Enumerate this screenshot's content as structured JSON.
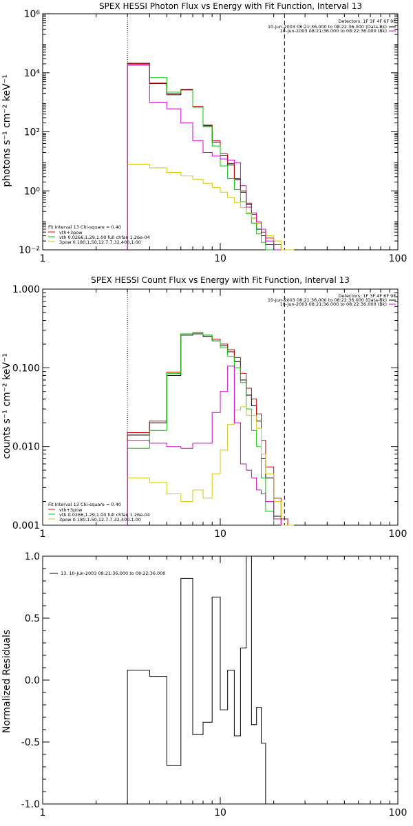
{
  "colors": {
    "data": "#000000",
    "total_fit": "#d40000",
    "thermal": "#00c800",
    "power_law": "#d4c800",
    "background": "#d000d0"
  },
  "chart_data": [
    {
      "type": "line",
      "step": true,
      "title": "SPEX HESSI Photon Flux vs Energy with Fit Function, Interval 13",
      "xlabel": "",
      "ylabel": "photons s⁻¹ cm⁻² keV⁻¹",
      "xscale": "log",
      "yscale": "log",
      "xlim": [
        1,
        100
      ],
      "ylim": [
        0.01,
        1000000
      ],
      "x_ticks": [
        1,
        10,
        100
      ],
      "x_tick_labels": [
        "1",
        "10",
        "100"
      ],
      "y_ticks": [
        0.01,
        1,
        100,
        10000,
        1000000
      ],
      "y_tick_labels": [
        "10⁻²",
        "10⁰",
        "10²",
        "10⁴",
        "10⁶"
      ],
      "energy_edges": [
        3,
        4,
        5,
        6,
        7,
        8,
        9,
        10,
        11,
        12,
        13,
        14,
        15,
        16,
        17,
        18,
        20,
        22,
        24,
        26
      ],
      "fit_range": [
        3,
        23
      ],
      "annot_top_right": [
        "Detectors: 1F 3F 4F 6F 9F",
        "10-Jun-2003 08:21:36.000 to 08:22:36.000 (Data-Bk)",
        "10-Jun-2003 08:21:36.000 to 08:22:36.000 (Bk)"
      ],
      "annot_bottom_left": [
        "Fit Interval 13    Chi-square = 0.40",
        "vth+3pow",
        "vth 0.0266,1.29,1.00  full chfan 1.26e-04",
        "3pow 0.180,1.50,12.7,7.32,400,1.00"
      ],
      "series": [
        {
          "name": "Data-Bk",
          "color": "#000000",
          "values": [
            21000,
            4300,
            1800,
            2600,
            700,
            160,
            45,
            16,
            7.5,
            2.4,
            0.9,
            0.34,
            0.12,
            0.05,
            0.03,
            0.015,
            0.01,
            0.008,
            null
          ]
        },
        {
          "name": "vth+3pow",
          "color": "#d40000",
          "values": [
            20000,
            4500,
            2000,
            2700,
            720,
            170,
            50,
            18,
            8.5,
            2.6,
            1,
            0.38,
            0.16,
            0.08,
            0.04,
            0.025,
            0.015,
            0.01,
            null
          ]
        },
        {
          "name": "vth",
          "color": "#00c800",
          "values": [
            19000,
            6900,
            2200,
            2800,
            680,
            150,
            33,
            7,
            2.6,
            1.1,
            0.43,
            0.17,
            0.08,
            0.035,
            0.018,
            0.01,
            null,
            null,
            null
          ]
        },
        {
          "name": "3pow",
          "color": "#d4c800",
          "values": [
            8,
            6,
            4.2,
            3.2,
            2.5,
            1.8,
            1.3,
            0.9,
            0.6,
            0.4,
            0.27,
            0.18,
            0.12,
            0.08,
            0.05,
            0.03,
            0.02,
            0.01,
            0.01
          ]
        },
        {
          "name": "Bk",
          "color": "#d000d0",
          "values": [
            18000,
            1000,
            600,
            200,
            50,
            20,
            15,
            12,
            11,
            9,
            1.5,
            0.28,
            0.18,
            0.09,
            0.05,
            0.02,
            0.01,
            null,
            null
          ]
        }
      ]
    },
    {
      "type": "line",
      "step": true,
      "title": "SPEX HESSI Count Flux vs Energy with Fit Function, Interval 13",
      "xlabel": "",
      "ylabel": "counts s⁻¹ cm⁻² keV⁻¹",
      "xscale": "log",
      "yscale": "log",
      "xlim": [
        1,
        100
      ],
      "ylim": [
        0.001,
        1
      ],
      "x_ticks": [
        1,
        10,
        100
      ],
      "x_tick_labels": [
        "1",
        "10",
        "100"
      ],
      "y_ticks": [
        0.001,
        0.01,
        0.1,
        1
      ],
      "y_tick_labels": [
        "0.001",
        "0.010",
        "0.100",
        "1.000"
      ],
      "energy_edges": [
        3,
        4,
        5,
        6,
        7,
        8,
        9,
        10,
        11,
        12,
        13,
        14,
        15,
        16,
        17,
        18,
        20,
        22,
        24,
        26
      ],
      "fit_range": [
        3,
        23
      ],
      "annot_top_right": [
        "Detectors: 1F 3F 4F 6F 9F",
        "10-Jun-2003 08:21:36.000 to 08:22:36.000 (Data-Bk)",
        "10-Jun-2003 08:21:36.000 to 08:22:36.000 (Bk)"
      ],
      "annot_bottom_left": [
        "Fit Interval 13    Chi-square = 0.40",
        "vth+3pow",
        "vth 0.0266,1.29,1.00  full chfan 1.26e-04",
        "3pow 0.180,1.50,12.7,7.32,400,1.00"
      ],
      "series": [
        {
          "name": "Data-Bk",
          "color": "#000000",
          "values": [
            0.014,
            0.02,
            0.08,
            0.26,
            0.27,
            0.25,
            0.22,
            0.19,
            0.16,
            0.12,
            0.07,
            0.045,
            0.033,
            0.021,
            0.007,
            0.004,
            0.0013,
            null,
            null
          ]
        },
        {
          "name": "vth+3pow",
          "color": "#d40000",
          "values": [
            0.015,
            0.021,
            0.088,
            0.27,
            0.28,
            0.26,
            0.23,
            0.2,
            0.17,
            0.135,
            0.085,
            0.055,
            0.04,
            0.026,
            0.012,
            0.0055,
            0.0022,
            0.0012,
            null
          ]
        },
        {
          "name": "vth",
          "color": "#00c800",
          "values": [
            0.0095,
            0.016,
            0.085,
            0.27,
            0.28,
            0.26,
            0.22,
            0.18,
            0.14,
            0.1,
            0.065,
            0.03,
            0.016,
            0.01,
            0.004,
            0.0015,
            null,
            null,
            null
          ]
        },
        {
          "name": "3pow",
          "color": "#d4c800",
          "values": [
            0.004,
            0.0035,
            0.0025,
            0.002,
            0.0028,
            0.0022,
            0.0045,
            0.009,
            0.019,
            0.029,
            0.032,
            0.025,
            0.025,
            0.017,
            0.008,
            0.0045,
            0.002,
            0.001,
            0.001
          ]
        },
        {
          "name": "Bk",
          "color": "#d000d0",
          "values": [
            0.012,
            0.011,
            0.01,
            0.0095,
            0.011,
            0.011,
            0.027,
            0.05,
            0.105,
            0.02,
            0.006,
            0.005,
            0.004,
            0.0028,
            0.0025,
            0.002,
            0.0012,
            null,
            null
          ]
        }
      ]
    },
    {
      "type": "line",
      "step": true,
      "title": "",
      "xlabel": "",
      "ylabel": "Normalized Residuals",
      "xscale": "log",
      "yscale": "linear",
      "xlim": [
        1,
        100
      ],
      "ylim": [
        -1,
        1
      ],
      "x_ticks": [
        1,
        10,
        100
      ],
      "x_tick_labels": [
        "1",
        "10",
        "100"
      ],
      "y_ticks": [
        -1,
        -0.5,
        0,
        0.5,
        1
      ],
      "y_tick_labels": [
        "-1.0",
        "-0.5",
        "0.0",
        "0.5",
        "1.0"
      ],
      "energy_edges": [
        3,
        4,
        5,
        6,
        7,
        8,
        9,
        10,
        11,
        12,
        13,
        14,
        15,
        16,
        17,
        18,
        20,
        22,
        24
      ],
      "legend_text": "13. 10-Jun-2003 08:21:36.000 to 08:22:36.000",
      "series": [
        {
          "name": "13. 10-Jun-2003 08:21:36.000 to 08:22:36.000",
          "color": "#000000",
          "values": [
            0.08,
            0.03,
            -0.69,
            0.82,
            -0.44,
            -0.34,
            0.67,
            -0.24,
            0.08,
            -0.45,
            0.26,
            1.0,
            -0.36,
            -0.22,
            -0.51,
            null,
            null,
            null
          ]
        }
      ]
    }
  ]
}
